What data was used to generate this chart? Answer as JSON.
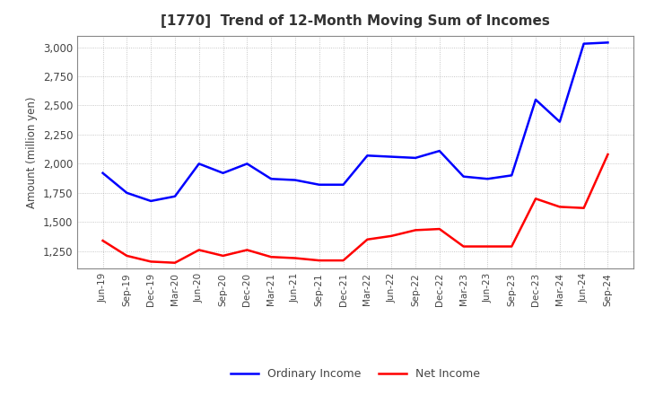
{
  "title": "[1770]  Trend of 12-Month Moving Sum of Incomes",
  "ylabel": "Amount (million yen)",
  "background_color": "#ffffff",
  "grid_color": "#999999",
  "x_labels": [
    "Jun-19",
    "Sep-19",
    "Dec-19",
    "Mar-20",
    "Jun-20",
    "Sep-20",
    "Dec-20",
    "Mar-21",
    "Jun-21",
    "Sep-21",
    "Dec-21",
    "Mar-22",
    "Jun-22",
    "Sep-22",
    "Dec-22",
    "Mar-23",
    "Jun-23",
    "Sep-23",
    "Dec-23",
    "Mar-24",
    "Jun-24",
    "Sep-24"
  ],
  "ordinary_income": [
    1920,
    1750,
    1680,
    1720,
    2000,
    1920,
    2000,
    1870,
    1860,
    1820,
    1820,
    2070,
    2060,
    2050,
    2110,
    1890,
    1870,
    1900,
    2550,
    2360,
    3030,
    3040
  ],
  "net_income": [
    1340,
    1210,
    1160,
    1150,
    1260,
    1210,
    1260,
    1200,
    1190,
    1170,
    1170,
    1350,
    1380,
    1430,
    1440,
    1290,
    1290,
    1290,
    1700,
    1630,
    1620,
    2080
  ],
  "ordinary_color": "#0000ff",
  "net_color": "#ff0000",
  "ylim_min": 1100,
  "ylim_max": 3100,
  "yticks": [
    1250,
    1500,
    1750,
    2000,
    2250,
    2500,
    2750,
    3000
  ],
  "line_width": 1.8,
  "title_fontsize": 11,
  "title_color": "#333333",
  "legend_labels": [
    "Ordinary Income",
    "Net Income"
  ],
  "tick_label_color": "#444444"
}
